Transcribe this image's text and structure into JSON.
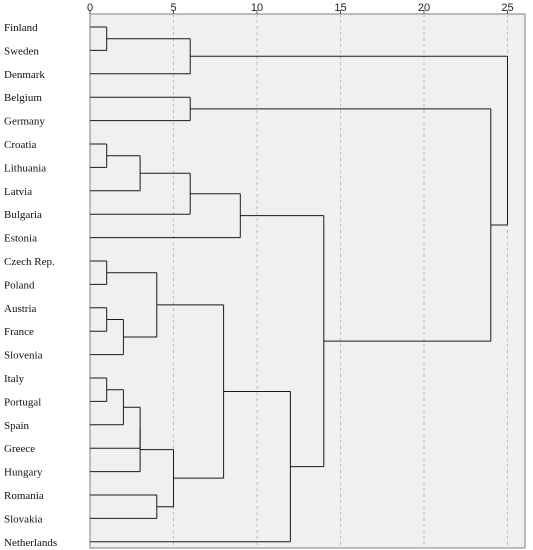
{
  "chart_data": {
    "type": "dendrogram",
    "title": "",
    "xlabel": "",
    "ylabel": "",
    "x_ticks": [
      0,
      5,
      10,
      15,
      20,
      25
    ],
    "xlim": [
      0,
      25
    ],
    "grid": "vertical dashed",
    "leaves": [
      "Finland",
      "Sweden",
      "Denmark",
      "Belgium",
      "Germany",
      "Croatia",
      "Lithuania",
      "Latvia",
      "Bulgaria",
      "Estonia",
      "Czech Rep.",
      "Poland",
      "Austria",
      "France",
      "Slovenia",
      "Italy",
      "Portugal",
      "Spain",
      "Greece",
      "Hungary",
      "Romania",
      "Slovakia",
      "Netherlands"
    ],
    "merges": [
      {
        "id": "c1",
        "left": "Finland",
        "right": "Sweden",
        "height": 1
      },
      {
        "id": "c2",
        "left": "c1",
        "right": "Denmark",
        "height": 6
      },
      {
        "id": "c3",
        "left": "Belgium",
        "right": "Germany",
        "height": 6
      },
      {
        "id": "c4",
        "left": "Croatia",
        "right": "Lithuania",
        "height": 1
      },
      {
        "id": "c5",
        "left": "c4",
        "right": "Latvia",
        "height": 3
      },
      {
        "id": "c6",
        "left": "c5",
        "right": "Bulgaria",
        "height": 6
      },
      {
        "id": "c7",
        "left": "c6",
        "right": "Estonia",
        "height": 9
      },
      {
        "id": "c8",
        "left": "Czech Rep.",
        "right": "Poland",
        "height": 1
      },
      {
        "id": "c9",
        "left": "Austria",
        "right": "France",
        "height": 1
      },
      {
        "id": "c10",
        "left": "c9",
        "right": "Slovenia",
        "height": 2
      },
      {
        "id": "c11",
        "left": "c8",
        "right": "c10",
        "height": 4
      },
      {
        "id": "c12",
        "left": "Italy",
        "right": "Portugal",
        "height": 1
      },
      {
        "id": "c13",
        "left": "c12",
        "right": "Spain",
        "height": 2
      },
      {
        "id": "c14",
        "left": "c13",
        "right": "Greece",
        "height": 3
      },
      {
        "id": "c15",
        "left": "c14",
        "right": "Hungary",
        "height": 3
      },
      {
        "id": "c16",
        "left": "Romania",
        "right": "Slovakia",
        "height": 4
      },
      {
        "id": "c17",
        "left": "c15",
        "right": "c16",
        "height": 5
      },
      {
        "id": "c18",
        "left": "c11",
        "right": "c17",
        "height": 8
      },
      {
        "id": "c19",
        "left": "c18",
        "right": "Netherlands",
        "height": 12
      },
      {
        "id": "c20",
        "left": "c7",
        "right": "c19",
        "height": 14
      },
      {
        "id": "c21",
        "left": "c3",
        "right": "c20",
        "height": 24
      },
      {
        "id": "c22",
        "left": "c2",
        "right": "c21",
        "height": 25
      }
    ]
  }
}
